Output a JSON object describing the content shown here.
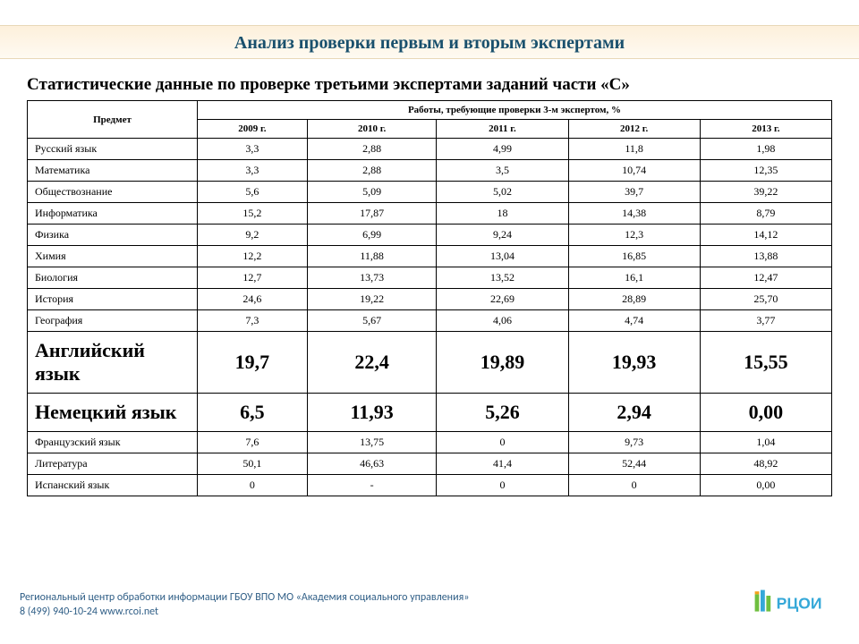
{
  "title": "Анализ проверки первым и вторым экспертами",
  "subtitle": "Статистические данные по проверке третьими экспертами заданий части «С»",
  "table": {
    "subject_header": "Предмет",
    "group_header": "Работы, требующие проверки 3-м экспертом, %",
    "year_headers": [
      "2009 г.",
      "2010 г.",
      "2011 г.",
      "2012 г.",
      "2013 г."
    ],
    "rows": [
      {
        "subject": "Русский язык",
        "vals": [
          "3,3",
          "2,88",
          "4,99",
          "11,8",
          "1,98"
        ],
        "big": false
      },
      {
        "subject": "Математика",
        "vals": [
          "3,3",
          "2,88",
          "3,5",
          "10,74",
          "12,35"
        ],
        "big": false
      },
      {
        "subject": "Обществознание",
        "vals": [
          "5,6",
          "5,09",
          "5,02",
          "39,7",
          "39,22"
        ],
        "big": false
      },
      {
        "subject": "Информатика",
        "vals": [
          "15,2",
          "17,87",
          "18",
          "14,38",
          "8,79"
        ],
        "big": false
      },
      {
        "subject": "Физика",
        "vals": [
          "9,2",
          "6,99",
          "9,24",
          "12,3",
          "14,12"
        ],
        "big": false
      },
      {
        "subject": "Химия",
        "vals": [
          "12,2",
          "11,88",
          "13,04",
          "16,85",
          "13,88"
        ],
        "big": false
      },
      {
        "subject": "Биология",
        "vals": [
          "12,7",
          "13,73",
          "13,52",
          "16,1",
          "12,47"
        ],
        "big": false
      },
      {
        "subject": "История",
        "vals": [
          "24,6",
          "19,22",
          "22,69",
          "28,89",
          "25,70"
        ],
        "big": false
      },
      {
        "subject": "География",
        "vals": [
          "7,3",
          "5,67",
          "4,06",
          "4,74",
          "3,77"
        ],
        "big": false
      },
      {
        "subject": "Английский язык",
        "vals": [
          "19,7",
          "22,4",
          "19,89",
          "19,93",
          "15,55"
        ],
        "big": true
      },
      {
        "subject": "Немецкий язык",
        "vals": [
          "6,5",
          "11,93",
          "5,26",
          "2,94",
          "0,00"
        ],
        "big": true
      },
      {
        "subject": "Французский язык",
        "vals": [
          "7,6",
          "13,75",
          "0",
          "9,73",
          "1,04"
        ],
        "big": false
      },
      {
        "subject": "Литература",
        "vals": [
          "50,1",
          "46,63",
          "41,4",
          "52,44",
          "48,92"
        ],
        "big": false
      },
      {
        "subject": "Испанский язык",
        "vals": [
          "0",
          "-",
          "0",
          "0",
          "0,00"
        ],
        "big": false
      }
    ]
  },
  "footer": {
    "line1": "Региональный центр обработки информации ГБОУ ВПО МО «Академия социального управления»",
    "line2": "8 (499) 940-10-24  www.rcoi.net"
  },
  "logo_text": "РЦОИ",
  "colors": {
    "title_text": "#19506d",
    "banner_top": "#fdf0db",
    "banner_bottom": "#fefaf2",
    "footer_text": "#2f5e86",
    "border": "#000000",
    "logo_blue": "#35a8d8",
    "logo_green": "#6fbf3f",
    "logo_orange": "#f5a11a"
  }
}
